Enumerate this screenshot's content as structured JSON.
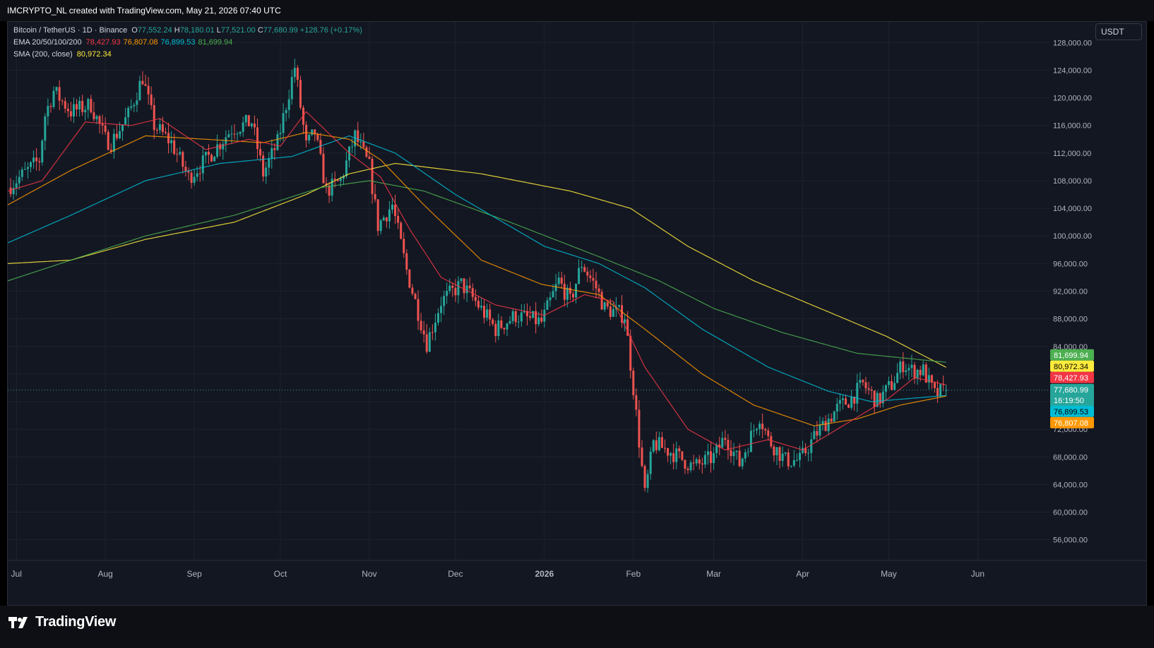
{
  "header": {
    "attribution": "IMCRYPTO_NL created with TradingView.com, May 21, 2026 07:40 UTC"
  },
  "legend": {
    "symbol": "Bitcoin / TetherUS · 1D · Binance",
    "open_label": "O",
    "open": "77,552.24",
    "high_label": "H",
    "high": "78,180.01",
    "low_label": "L",
    "low": "77,521.00",
    "close_label": "C",
    "close": "77,680.99",
    "change": "+128.76 (+0.17%)",
    "ema_label": "EMA 20/50/100/200",
    "ema20": "78,427.93",
    "ema50": "76,807.08",
    "ema100": "76,899.53",
    "ema200": "81,699.94",
    "sma_label": "SMA (200, close)",
    "sma200": "80,972.34"
  },
  "currency_button": "USDT",
  "footer": {
    "brand": "TradingView"
  },
  "colors": {
    "background": "#131722",
    "grid": "#1e222d",
    "up": "#26a69a",
    "down": "#ef5350",
    "ema20": "#f23645",
    "ema50": "#ff9800",
    "ema100": "#00bcd4",
    "ema200": "#4caf50",
    "sma200": "#ffeb3b"
  },
  "chart_data": {
    "type": "candlestick",
    "title": "Bitcoin / TetherUS · 1D · Binance",
    "ylim": [
      53000,
      131000
    ],
    "y_ticks": [
      "56,000.00",
      "60,000.00",
      "64,000.00",
      "68,000.00",
      "72,000.00",
      "76,000.00",
      "80,000.00",
      "84,000.00",
      "88,000.00",
      "92,000.00",
      "96,000.00",
      "100,000.00",
      "104,000.00",
      "108,000.00",
      "112,000.00",
      "116,000.00",
      "120,000.00",
      "124,000.00",
      "128,000.00"
    ],
    "x_ticks": [
      "Jul",
      "Aug",
      "Sep",
      "Oct",
      "Nov",
      "Dec",
      "2026",
      "Feb",
      "Mar",
      "Apr",
      "May",
      "Jun"
    ],
    "x_range": [
      "2025-06-28",
      "2026-06-26"
    ],
    "last_price_label": "77,680.99",
    "countdown": "16:19:50",
    "price_labels": [
      {
        "value": 81699.94,
        "text": "81,699.94",
        "color": "#4caf50"
      },
      {
        "value": 80972.34,
        "text": "80,972.34",
        "color": "#ffeb3b"
      },
      {
        "value": 78427.93,
        "text": "78,427.93",
        "color": "#f23645"
      },
      {
        "value": 76899.53,
        "text": "76,899.53",
        "color": "#00bcd4"
      },
      {
        "value": 76807.08,
        "text": "76,807.08",
        "color": "#ff9800"
      }
    ],
    "close_anchors": [
      [
        "2025-06-28",
        107000
      ],
      [
        "2025-07-05",
        109500
      ],
      [
        "2025-07-09",
        111000
      ],
      [
        "2025-07-11",
        117500
      ],
      [
        "2025-07-14",
        121000
      ],
      [
        "2025-07-20",
        118000
      ],
      [
        "2025-07-27",
        119000
      ],
      [
        "2025-08-01",
        114000
      ],
      [
        "2025-08-03",
        113500
      ],
      [
        "2025-08-09",
        117500
      ],
      [
        "2025-08-14",
        123000
      ],
      [
        "2025-08-18",
        116000
      ],
      [
        "2025-08-24",
        113500
      ],
      [
        "2025-08-30",
        108500
      ],
      [
        "2025-09-05",
        111000
      ],
      [
        "2025-09-14",
        115500
      ],
      [
        "2025-09-21",
        116500
      ],
      [
        "2025-09-25",
        109000
      ],
      [
        "2025-09-30",
        113500
      ],
      [
        "2025-10-06",
        124500
      ],
      [
        "2025-10-10",
        113000
      ],
      [
        "2025-10-13",
        115000
      ],
      [
        "2025-10-17",
        106500
      ],
      [
        "2025-10-22",
        108000
      ],
      [
        "2025-10-27",
        114500
      ],
      [
        "2025-11-01",
        110000
      ],
      [
        "2025-11-04",
        101500
      ],
      [
        "2025-11-09",
        104500
      ],
      [
        "2025-11-14",
        95000
      ],
      [
        "2025-11-21",
        84500
      ],
      [
        "2025-11-26",
        90500
      ],
      [
        "2025-12-03",
        93000
      ],
      [
        "2025-12-08",
        90500
      ],
      [
        "2025-12-15",
        86500
      ],
      [
        "2025-12-22",
        88500
      ],
      [
        "2025-12-31",
        87500
      ],
      [
        "2026-01-06",
        93500
      ],
      [
        "2026-01-10",
        90500
      ],
      [
        "2026-01-14",
        96000
      ],
      [
        "2026-01-19",
        92500
      ],
      [
        "2026-01-22",
        89500
      ],
      [
        "2026-01-29",
        88500
      ],
      [
        "2026-02-01",
        78000
      ],
      [
        "2026-02-05",
        62500
      ],
      [
        "2026-02-08",
        70000
      ],
      [
        "2026-02-15",
        68500
      ],
      [
        "2026-02-22",
        66500
      ],
      [
        "2026-03-01",
        68000
      ],
      [
        "2026-03-05",
        71000
      ],
      [
        "2026-03-10",
        67000
      ],
      [
        "2026-03-17",
        74000
      ],
      [
        "2026-03-20",
        70500
      ],
      [
        "2026-03-26",
        67500
      ],
      [
        "2026-03-31",
        67500
      ],
      [
        "2026-04-06",
        71500
      ],
      [
        "2026-04-13",
        75000
      ],
      [
        "2026-04-18",
        76500
      ],
      [
        "2026-04-22",
        78500
      ],
      [
        "2026-04-27",
        76000
      ],
      [
        "2026-05-02",
        78500
      ],
      [
        "2026-05-06",
        81500
      ],
      [
        "2026-05-09",
        80500
      ],
      [
        "2026-05-13",
        80500
      ],
      [
        "2026-05-17",
        77000
      ],
      [
        "2026-05-21",
        77680.99
      ]
    ],
    "ema20_anchors": [
      [
        "2025-06-28",
        106500
      ],
      [
        "2025-07-10",
        108000
      ],
      [
        "2025-07-25",
        116500
      ],
      [
        "2025-08-10",
        116000
      ],
      [
        "2025-08-20",
        117000
      ],
      [
        "2025-09-05",
        112500
      ],
      [
        "2025-09-20",
        114000
      ],
      [
        "2025-10-01",
        113000
      ],
      [
        "2025-10-10",
        118000
      ],
      [
        "2025-10-25",
        112000
      ],
      [
        "2025-11-05",
        108500
      ],
      [
        "2025-11-15",
        101000
      ],
      [
        "2025-11-26",
        94000
      ],
      [
        "2025-12-15",
        90000
      ],
      [
        "2026-01-01",
        88500
      ],
      [
        "2026-01-15",
        91500
      ],
      [
        "2026-01-25",
        90500
      ],
      [
        "2026-02-05",
        81000
      ],
      [
        "2026-02-20",
        72000
      ],
      [
        "2026-03-05",
        69000
      ],
      [
        "2026-03-20",
        70500
      ],
      [
        "2026-04-01",
        69000
      ],
      [
        "2026-04-15",
        72500
      ],
      [
        "2026-05-01",
        76500
      ],
      [
        "2026-05-10",
        79500
      ],
      [
        "2026-05-21",
        78427.93
      ]
    ],
    "ema50_anchors": [
      [
        "2025-06-28",
        104500
      ],
      [
        "2025-07-20",
        109500
      ],
      [
        "2025-08-15",
        114500
      ],
      [
        "2025-09-05",
        114000
      ],
      [
        "2025-09-25",
        113500
      ],
      [
        "2025-10-10",
        115000
      ],
      [
        "2025-10-25",
        114000
      ],
      [
        "2025-11-05",
        111000
      ],
      [
        "2025-11-20",
        104500
      ],
      [
        "2025-12-10",
        96500
      ],
      [
        "2025-12-31",
        93000
      ],
      [
        "2026-01-20",
        91500
      ],
      [
        "2026-02-05",
        86500
      ],
      [
        "2026-02-25",
        80000
      ],
      [
        "2026-03-15",
        75500
      ],
      [
        "2026-04-05",
        72500
      ],
      [
        "2026-04-20",
        73500
      ],
      [
        "2026-05-05",
        75500
      ],
      [
        "2026-05-21",
        76807.08
      ]
    ],
    "ema100_anchors": [
      [
        "2025-06-28",
        99000
      ],
      [
        "2025-07-20",
        103000
      ],
      [
        "2025-08-15",
        108000
      ],
      [
        "2025-09-10",
        110500
      ],
      [
        "2025-10-05",
        111500
      ],
      [
        "2025-10-25",
        114500
      ],
      [
        "2025-11-10",
        112000
      ],
      [
        "2025-12-01",
        106000
      ],
      [
        "2026-01-01",
        98500
      ],
      [
        "2026-01-20",
        96000
      ],
      [
        "2026-02-05",
        92500
      ],
      [
        "2026-02-25",
        86500
      ],
      [
        "2026-03-20",
        81000
      ],
      [
        "2026-04-10",
        77500
      ],
      [
        "2026-04-25",
        76000
      ],
      [
        "2026-05-21",
        76899.53
      ]
    ],
    "ema200_anchors": [
      [
        "2025-06-28",
        93500
      ],
      [
        "2025-07-20",
        96500
      ],
      [
        "2025-08-15",
        100000
      ],
      [
        "2025-09-15",
        103000
      ],
      [
        "2025-10-15",
        107000
      ],
      [
        "2025-11-01",
        108000
      ],
      [
        "2025-11-20",
        106500
      ],
      [
        "2025-12-20",
        102000
      ],
      [
        "2026-01-20",
        97000
      ],
      [
        "2026-02-10",
        93500
      ],
      [
        "2026-03-01",
        89500
      ],
      [
        "2026-03-25",
        86000
      ],
      [
        "2026-04-20",
        83000
      ],
      [
        "2026-05-21",
        81699.94
      ]
    ],
    "sma200_anchors": [
      [
        "2025-06-28",
        96000
      ],
      [
        "2025-07-20",
        96500
      ],
      [
        "2025-08-15",
        99500
      ],
      [
        "2025-09-15",
        102000
      ],
      [
        "2025-10-10",
        106000
      ],
      [
        "2025-10-25",
        109000
      ],
      [
        "2025-11-10",
        110500
      ],
      [
        "2025-12-10",
        109000
      ],
      [
        "2026-01-10",
        106500
      ],
      [
        "2026-01-31",
        104000
      ],
      [
        "2026-02-20",
        98500
      ],
      [
        "2026-03-15",
        93500
      ],
      [
        "2026-04-10",
        89000
      ],
      [
        "2026-04-30",
        85500
      ],
      [
        "2026-05-21",
        80972.34
      ]
    ]
  }
}
